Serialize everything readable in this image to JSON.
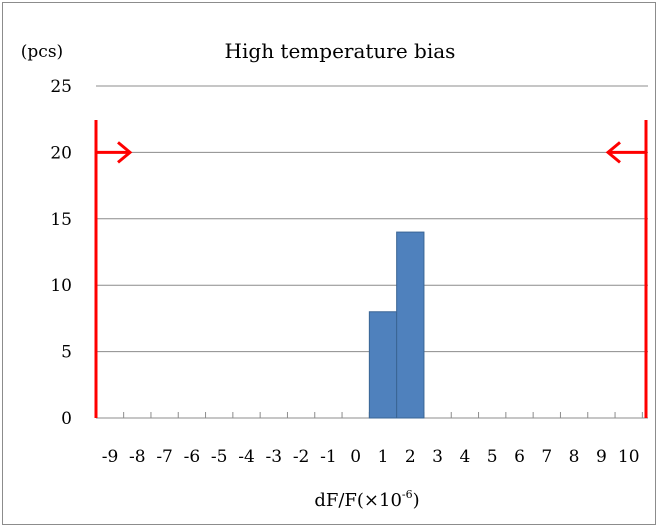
{
  "chart_data": {
    "type": "bar",
    "title": "High temperature bias",
    "ylabel": "(pcs)",
    "xlabel_main": "dF/F(×10",
    "xlabel_sup": "-6",
    "xlabel_close": ")",
    "categories": [
      "-9",
      "-8",
      "-7",
      "-6",
      "-5",
      "-4",
      "-3",
      "-2",
      "-1",
      "0",
      "1",
      "2",
      "3",
      "4",
      "5",
      "6",
      "7",
      "8",
      "9",
      "10"
    ],
    "values": [
      0,
      0,
      0,
      0,
      0,
      0,
      0,
      0,
      0,
      0,
      8,
      14,
      0,
      0,
      0,
      0,
      0,
      0,
      0,
      0
    ],
    "ylim": [
      0,
      25
    ],
    "yticks": [
      "0",
      "5",
      "10",
      "15",
      "20",
      "25"
    ],
    "grid": true,
    "bar_color": "#4f81bd",
    "limit_markers": {
      "color": "#ff0000",
      "level": 20,
      "left_arrow": "right",
      "right_arrow": "left"
    }
  }
}
